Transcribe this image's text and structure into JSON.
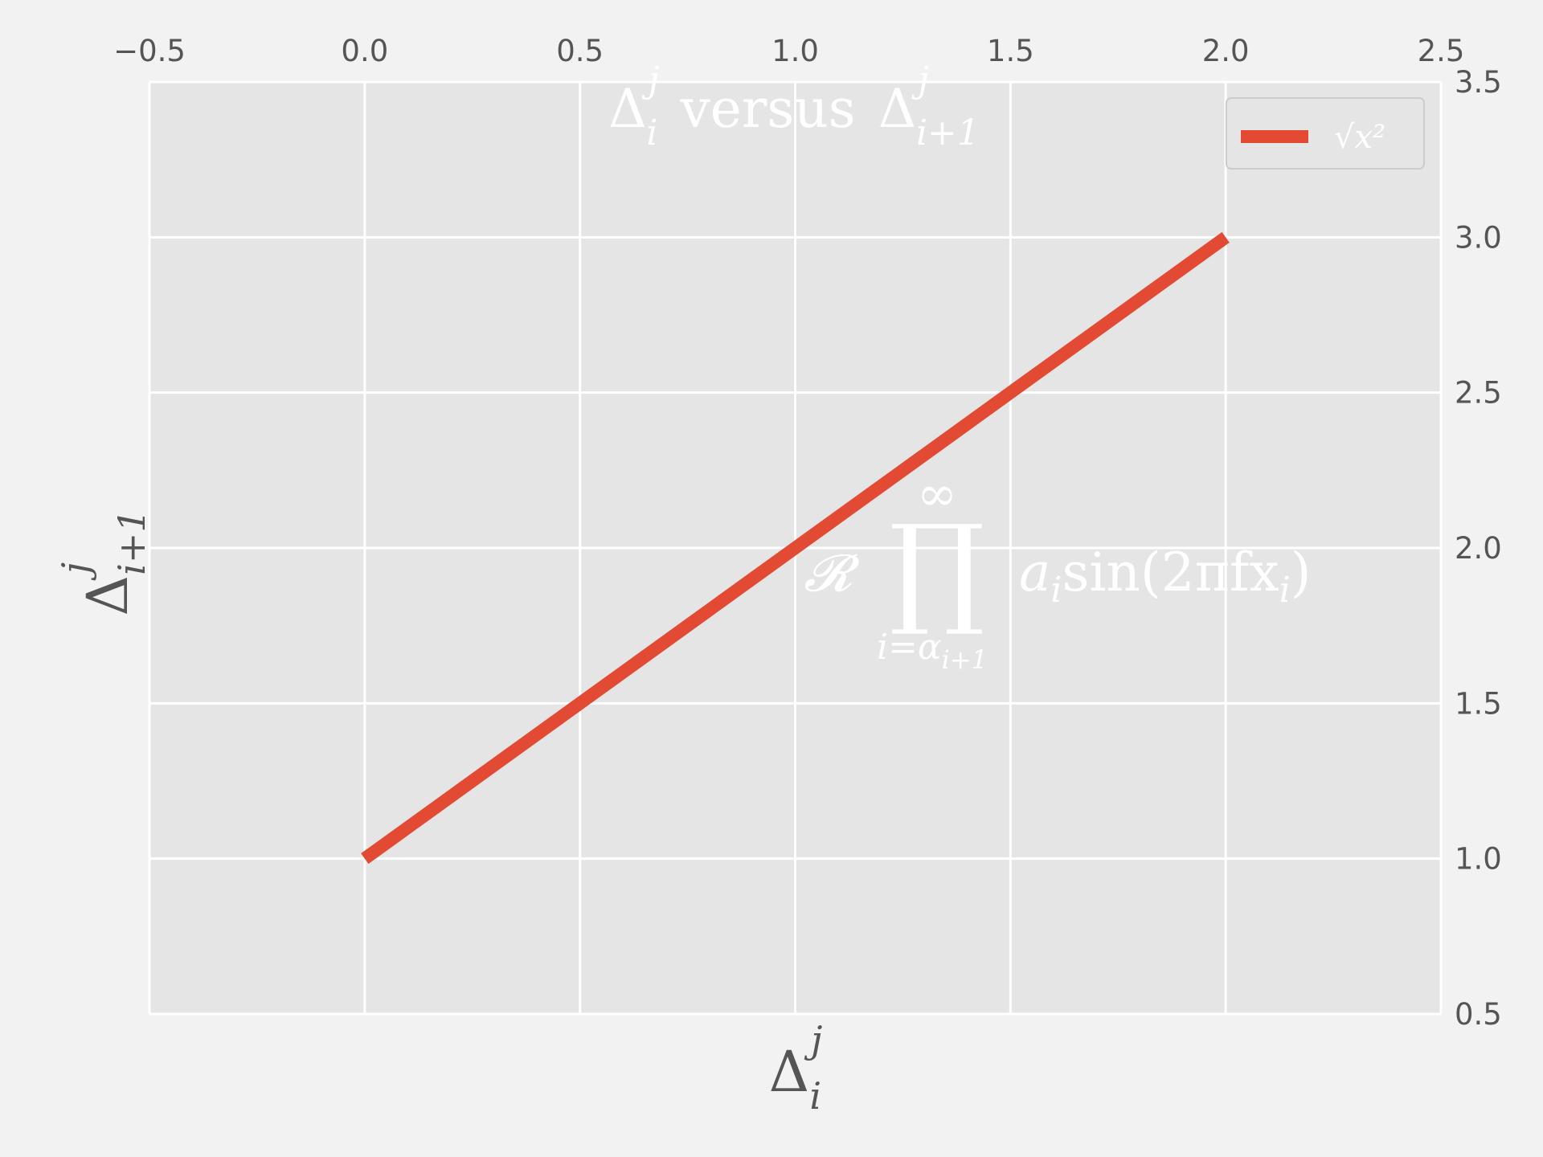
{
  "chart_data": {
    "type": "line",
    "title_parts": {
      "base_left": "Δ",
      "sup_left": "j",
      "sub_left": "i",
      "middle": "versus",
      "base_right": "Δ",
      "sup_right": "j",
      "sub_right": "i+1"
    },
    "xlabel_parts": {
      "base": "Δ",
      "sup": "j",
      "sub": "i"
    },
    "ylabel_parts": {
      "base": "Δ",
      "sup": "j",
      "sub": "i+1"
    },
    "xlim": [
      -0.5,
      2.5
    ],
    "ylim": [
      0.5,
      3.5
    ],
    "x_ticks": [
      "−0.5",
      "0.0",
      "0.5",
      "1.0",
      "1.5",
      "2.0",
      "2.5"
    ],
    "y_ticks": [
      "0.5",
      "1.0",
      "1.5",
      "2.0",
      "2.5",
      "3.0",
      "3.5"
    ],
    "x_tick_position": "top",
    "y_tick_position": "right",
    "grid": true,
    "series": [
      {
        "name": "√x²",
        "color": "#e24a33",
        "x": [
          0,
          1,
          2
        ],
        "y": [
          1,
          2,
          3
        ]
      }
    ],
    "legend": {
      "placement": "top-right",
      "label": "√x²"
    },
    "annotation": {
      "prefix": "𝓡",
      "operator": "∏",
      "upper": "∞",
      "lower": "i=α",
      "lower_sub": "i+1",
      "body_var": "a",
      "body_sub": "i",
      "body_text": "sin(2πfx",
      "body_sub2": "i",
      "body_close": ")",
      "x": 1.0,
      "y": 2.0
    },
    "colors": {
      "background": "#f2f2f2",
      "plot_bg": "#e5e5e5",
      "grid": "#ffffff",
      "line": "#e24a33",
      "text": "#555555"
    }
  }
}
